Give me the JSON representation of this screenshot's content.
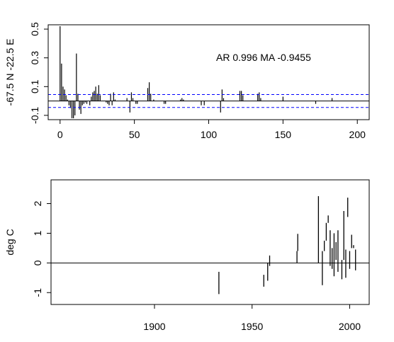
{
  "chart_data": [
    {
      "type": "bar",
      "annotation": "AR 0.996  MA -0.9455",
      "ylabel": "-67.5 N -22.5 E",
      "xlim": [
        -8,
        208
      ],
      "ylim": [
        -0.13,
        0.53
      ],
      "xticks": [
        0,
        50,
        100,
        150,
        200
      ],
      "yticks": [
        -0.1,
        0.1,
        0.3,
        0.5
      ],
      "ytick_labels": [
        "-0.1",
        "0.1",
        "0.3",
        "0.5"
      ],
      "conf_band": [
        0.045,
        -0.045
      ],
      "reference_line": 0,
      "lags": [
        0,
        1,
        2,
        3,
        4,
        5,
        6,
        7,
        8,
        9,
        10,
        11,
        12,
        13,
        14,
        15,
        16,
        17,
        18,
        19,
        20,
        21,
        22,
        23,
        24,
        25,
        26,
        27,
        28,
        29,
        30,
        31,
        32,
        33,
        34,
        35,
        36,
        37,
        38,
        39,
        40,
        41,
        42,
        43,
        44,
        45,
        46,
        47,
        48,
        49,
        50,
        51,
        52,
        53,
        54,
        55,
        56,
        57,
        58,
        59,
        60,
        61,
        62,
        63,
        64,
        65,
        66,
        67,
        68,
        69,
        70,
        71,
        72,
        73,
        74,
        75,
        76,
        77,
        78,
        79,
        80,
        81,
        82,
        83,
        84,
        85,
        86,
        87,
        88,
        89,
        90,
        91,
        92,
        93,
        94,
        95,
        96,
        97,
        98,
        99,
        100,
        101,
        102,
        103,
        104,
        105,
        106,
        107,
        108,
        109,
        110,
        111,
        112,
        113,
        114,
        115,
        116,
        117,
        118,
        119,
        120,
        121,
        122,
        123,
        124,
        125,
        126,
        127,
        128,
        129,
        130,
        131,
        132,
        133,
        134,
        135,
        136,
        137,
        138,
        139,
        140,
        141,
        142,
        143,
        144,
        145,
        146,
        147,
        148,
        149,
        150,
        151,
        152,
        153,
        154,
        155,
        156,
        157,
        158,
        159,
        160,
        161,
        162,
        163,
        164,
        165,
        166,
        167,
        168,
        169,
        170,
        171,
        172,
        173,
        174,
        175,
        176,
        177,
        178,
        179,
        180,
        181,
        182,
        183,
        184,
        185,
        186,
        187,
        188,
        189,
        190,
        191,
        192,
        193,
        194,
        195,
        196,
        197,
        198,
        199,
        200
      ],
      "values": [
        0.52,
        0.26,
        0.1,
        0.08,
        0.04,
        0.01,
        -0.03,
        -0.05,
        -0.12,
        -0.12,
        -0.1,
        0.33,
        0.05,
        -0.06,
        -0.09,
        -0.03,
        -0.02,
        -0.01,
        -0.02,
        0.0,
        -0.03,
        0.03,
        0.06,
        0.07,
        0.1,
        0.05,
        0.11,
        0.04,
        0.0,
        0.0,
        0.0,
        -0.01,
        -0.02,
        -0.03,
        0.05,
        -0.03,
        0.06,
        0.01,
        0.0,
        0.0,
        0.0,
        0.0,
        0.0,
        0.0,
        0.0,
        0.02,
        0.0,
        -0.08,
        0.06,
        0.02,
        0.0,
        -0.02,
        -0.02,
        0.0,
        0.0,
        0.0,
        0.0,
        0.0,
        0.0,
        0.09,
        0.13,
        0.05,
        0.0,
        0.01,
        0.0,
        0.0,
        0.0,
        0.0,
        0.0,
        0.0,
        -0.02,
        -0.02,
        0.0,
        0.0,
        0.0,
        0.0,
        0.0,
        0.0,
        0.0,
        0.0,
        0.0,
        0.01,
        0.02,
        0.01,
        0.0,
        0.0,
        0.0,
        0.0,
        0.0,
        0.0,
        0.0,
        0.0,
        0.0,
        0.0,
        0.0,
        -0.03,
        0.0,
        -0.03,
        0.0,
        0.0,
        0.0,
        0.0,
        0.0,
        0.0,
        0.0,
        0.0,
        0.0,
        0.0,
        -0.08,
        0.08,
        0.02,
        0.0,
        0.0,
        0.0,
        0.0,
        0.0,
        0.0,
        0.0,
        0.0,
        0.0,
        0.0,
        0.07,
        0.07,
        0.04,
        0.0,
        0.0,
        0.0,
        0.0,
        0.0,
        0.0,
        0.0,
        0.0,
        0.0,
        0.05,
        0.06,
        0.02,
        0.0,
        0.0,
        0.0,
        0.0,
        0.0,
        0.0,
        0.0,
        0.0,
        0.0,
        0.0,
        0.0,
        0.0,
        0.0,
        0.0,
        0.03,
        0.0,
        0.0,
        0.0,
        0.0,
        0.0,
        0.0,
        0.0,
        0.0,
        0.0,
        0.0,
        0.0,
        0.0,
        0.0,
        0.0,
        0.0,
        0.0,
        0.0,
        0.0,
        0.0,
        0.0,
        0.0,
        -0.02,
        0.0,
        0.0,
        0.0,
        0.0,
        0.0,
        0.0,
        0.0,
        0.0,
        0.0,
        0.0,
        0.02,
        0.0,
        0.0,
        0.0,
        0.0,
        0.0,
        0.0,
        0.0,
        0.0,
        0.0,
        0.0,
        0.0,
        0.0,
        0.0,
        0.0,
        0.0,
        0.0,
        0.0,
        0.0,
        0.0
      ]
    },
    {
      "type": "line",
      "ylabel": "deg C",
      "xlim": [
        1847,
        2010
      ],
      "ylim": [
        -1.4,
        2.8
      ],
      "xticks": [
        1900,
        1950,
        2000
      ],
      "yticks": [
        -1,
        0,
        1,
        2
      ],
      "ytick_labels": [
        "-1",
        "0",
        "1",
        "2"
      ],
      "reference_line": 0,
      "segments": [
        {
          "x": [
            1933,
            1933
          ],
          "y": [
            -1.05,
            -0.3
          ]
        },
        {
          "x": [
            1956,
            1956
          ],
          "y": [
            -0.8,
            -0.4
          ]
        },
        {
          "x": [
            1958,
            1958
          ],
          "y": [
            -0.6,
            0.0
          ]
        },
        {
          "x": [
            1959,
            1959
          ],
          "y": [
            -0.1,
            0.25
          ]
        },
        {
          "x": [
            1973,
            1973
          ],
          "y": [
            0.0,
            0.4
          ]
        },
        {
          "x": [
            1973.4,
            1973.4
          ],
          "y": [
            0.4,
            0.98
          ]
        },
        {
          "x": [
            1984,
            1984
          ],
          "y": [
            0.0,
            2.25
          ]
        },
        {
          "x": [
            1986,
            1986
          ],
          "y": [
            -0.75,
            0.4
          ]
        },
        {
          "x": [
            1987,
            1987
          ],
          "y": [
            0.4,
            0.75
          ]
        },
        {
          "x": [
            1988,
            1988
          ],
          "y": [
            0.75,
            1.35
          ]
        },
        {
          "x": [
            1989,
            1989
          ],
          "y": [
            1.35,
            1.6
          ]
        },
        {
          "x": [
            1990,
            1990
          ],
          "y": [
            -0.1,
            1.1
          ]
        },
        {
          "x": [
            1991,
            1991
          ],
          "y": [
            -0.2,
            0.5
          ]
        },
        {
          "x": [
            1992,
            1992
          ],
          "y": [
            -0.45,
            1.0
          ]
        },
        {
          "x": [
            1993,
            1993
          ],
          "y": [
            0.1,
            0.7
          ]
        },
        {
          "x": [
            1994,
            1994
          ],
          "y": [
            -0.3,
            1.1
          ]
        },
        {
          "x": [
            1996,
            1996
          ],
          "y": [
            -0.55,
            0.1
          ]
        },
        {
          "x": [
            1997,
            1997
          ],
          "y": [
            0.1,
            1.75
          ]
        },
        {
          "x": [
            1998,
            1998
          ],
          "y": [
            -0.5,
            0.45
          ]
        },
        {
          "x": [
            1999,
            1999
          ],
          "y": [
            1.55,
            2.2
          ]
        },
        {
          "x": [
            2000,
            2000
          ],
          "y": [
            -0.2,
            0.4
          ]
        },
        {
          "x": [
            2001,
            2001
          ],
          "y": [
            0.5,
            0.95
          ]
        },
        {
          "x": [
            2002,
            2002
          ],
          "y": [
            0.5,
            0.6
          ]
        },
        {
          "x": [
            2003,
            2003
          ],
          "y": [
            -0.25,
            0.45
          ]
        }
      ]
    }
  ]
}
